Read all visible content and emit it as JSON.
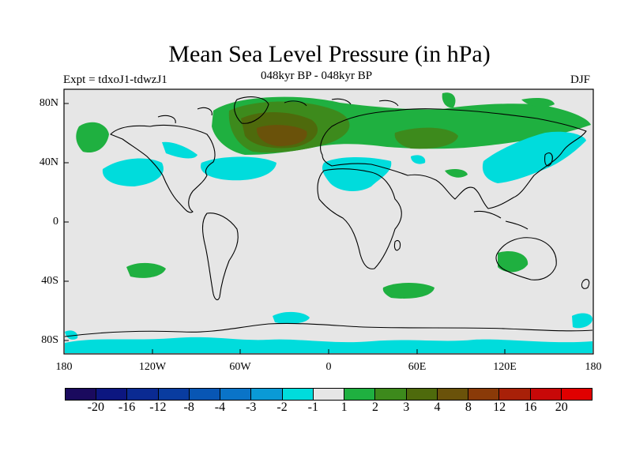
{
  "title": "Mean Sea Level Pressure (in hPa)",
  "expt_label": "Expt = tdxoJ1-tdwzJ1",
  "period_label": "048kyr BP - 048kyr BP",
  "season": "DJF",
  "axes": {
    "y_ticks": [
      "80N",
      "40N",
      "0",
      "40S",
      "80S"
    ],
    "x_ticks": [
      "180",
      "120W",
      "60W",
      "0",
      "60E",
      "120E",
      "180"
    ]
  },
  "colorbar": {
    "labels": [
      "-20",
      "-16",
      "-12",
      "-8",
      "-4",
      "-3",
      "-2",
      "-1",
      "1",
      "2",
      "3",
      "4",
      "8",
      "12",
      "16",
      "20"
    ],
    "colors": [
      "#1a0a5e",
      "#0c1680",
      "#0a2a92",
      "#093ca0",
      "#0856b4",
      "#0a74c8",
      "#0a9ad6",
      "#00dcdc",
      "#e6e6e6",
      "#1fb040",
      "#3d8a1c",
      "#4e6a0c",
      "#6a520a",
      "#8a3a08",
      "#a82008",
      "#c80808",
      "#e00000"
    ]
  },
  "colors": {
    "ocean_background": "#e6e6e6",
    "positive_1_2": "#1fb040",
    "positive_2_3": "#3d8a1c",
    "positive_3_4": "#4e6a0c",
    "positive_4_8": "#6a520a",
    "negative_1_2": "#00dcdc"
  }
}
